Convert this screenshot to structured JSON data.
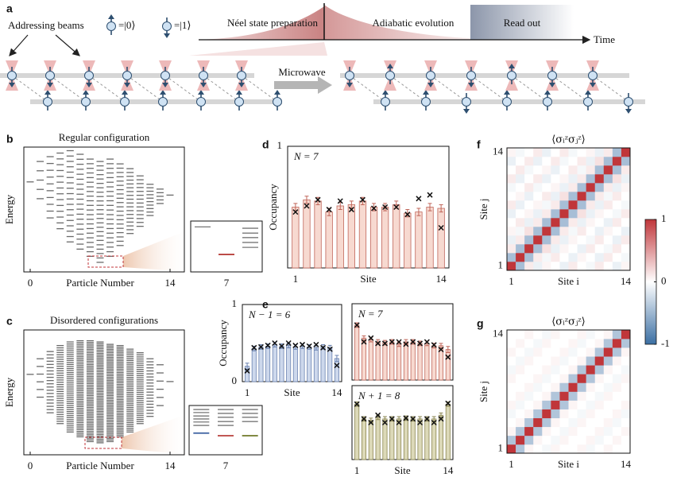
{
  "panel_labels": [
    "a",
    "b",
    "c",
    "d",
    "e",
    "f",
    "g"
  ],
  "schematic": {
    "addressing_beams": "Addressing beams",
    "ket0": "=|0⟩",
    "ket1": "=|1⟩",
    "stage1": "Néel state preparation",
    "stage2": "Adiabatic evolution",
    "stage3": "Read out",
    "time_axis": "Time",
    "microwave": "Microwave"
  },
  "colorbar": {
    "clim": [
      -1,
      1
    ],
    "ticks": [
      1,
      0,
      -1
    ],
    "colors": [
      "#3b6fa3",
      "#ffffff",
      "#c0363a"
    ]
  },
  "chart_data": [
    {
      "type": "spectrum",
      "title": "Regular configuration",
      "xlabel": "Particle Number",
      "ylabel": "Energy",
      "x": [
        0,
        1,
        2,
        3,
        4,
        5,
        6,
        7,
        8,
        9,
        10,
        11,
        12,
        13,
        14
      ],
      "xlim": [
        0,
        14
      ],
      "xticks": [
        0,
        14
      ],
      "ylim": [
        0,
        10
      ],
      "energy_min": [
        7.3,
        5.9,
        4.3,
        3.4,
        2.3,
        1.7,
        1.1,
        0.6,
        1.1,
        2.0,
        3.0,
        3.6,
        4.5,
        5.5,
        6.2
      ],
      "energy_max": [
        7.3,
        9.0,
        9.4,
        9.7,
        9.9,
        9.6,
        9.2,
        9.0,
        9.2,
        8.8,
        8.4,
        7.8,
        7.1,
        6.7,
        6.2
      ],
      "level_counts": [
        1,
        5,
        10,
        14,
        18,
        20,
        22,
        24,
        22,
        20,
        18,
        14,
        10,
        5,
        1
      ],
      "color": "#6a6a6a",
      "inset": {
        "x": [
          6,
          7,
          8
        ],
        "xlim": [
          5.5,
          8.5
        ],
        "xticks": [
          7
        ],
        "ylim": [
          0,
          10
        ],
        "levels": [
          [
            9.4
          ],
          [],
          [
            9.1,
            8.0,
            7.0,
            5.9,
            4.8
          ]
        ],
        "highlight": [
          null,
          3.2,
          null
        ],
        "highlight_colors": [
          null,
          "#b8413c",
          null
        ],
        "color": "#777777"
      }
    },
    {
      "type": "spectrum",
      "title": "Disordered configurations",
      "xlabel": "Particle Number",
      "ylabel": "Energy",
      "x": [
        0,
        1,
        2,
        3,
        4,
        5,
        6,
        7,
        8,
        9,
        10,
        11,
        12,
        13,
        14
      ],
      "xlim": [
        0,
        14
      ],
      "xticks": [
        0,
        14
      ],
      "ylim": [
        0,
        10
      ],
      "energy_min": [
        6.5,
        4.6,
        3.3,
        2.4,
        1.7,
        1.3,
        0.9,
        0.8,
        0.9,
        1.3,
        1.7,
        2.4,
        3.0,
        3.9,
        5.9
      ],
      "energy_max": [
        6.5,
        7.8,
        8.4,
        8.9,
        9.2,
        9.3,
        9.3,
        9.2,
        9.0,
        8.9,
        8.6,
        8.3,
        7.8,
        7.3,
        5.9
      ],
      "level_counts": [
        1,
        6,
        20,
        35,
        45,
        55,
        60,
        62,
        60,
        55,
        45,
        35,
        20,
        6,
        1
      ],
      "color": "#6a6a6a",
      "inset": {
        "x": [
          6,
          7,
          8
        ],
        "xlim": [
          5.5,
          8.5
        ],
        "xticks": [
          7
        ],
        "ylim": [
          0,
          10
        ],
        "levels": [
          [
            9.8,
            9.1,
            8.3,
            7.6,
            6.9,
            6.1
          ],
          [
            9.8,
            8.9,
            8.0,
            7.0,
            6.1
          ],
          [
            9.8,
            8.9,
            8.0,
            7.0
          ]
        ],
        "highlight": [
          4.3,
          3.7,
          3.7
        ],
        "highlight_colors": [
          "#3a5fa0",
          "#b8413c",
          "#6f7a2a"
        ],
        "color": "#777777"
      }
    },
    {
      "type": "bar",
      "annotation": "N = 7",
      "xlabel": "Site",
      "ylabel": "Occupancy",
      "x": [
        1,
        2,
        3,
        4,
        5,
        6,
        7,
        8,
        9,
        10,
        11,
        12,
        13,
        14
      ],
      "xlim": [
        0.3,
        14.7
      ],
      "xticks": [
        1,
        14
      ],
      "ylim": [
        0,
        1
      ],
      "yticks": [
        1
      ],
      "values": [
        0.5,
        0.56,
        0.55,
        0.46,
        0.51,
        0.52,
        0.55,
        0.5,
        0.5,
        0.52,
        0.45,
        0.46,
        0.5,
        0.49
      ],
      "errors": [
        0.03,
        0.03,
        0.03,
        0.03,
        0.03,
        0.03,
        0.03,
        0.03,
        0.03,
        0.03,
        0.03,
        0.03,
        0.03,
        0.03
      ],
      "theory": [
        0.46,
        0.51,
        0.56,
        0.48,
        0.55,
        0.48,
        0.56,
        0.49,
        0.5,
        0.5,
        0.44,
        0.57,
        0.6,
        0.33
      ],
      "color": "#f7d9d0",
      "edge_color": "#c0665a"
    },
    {
      "type": "bar",
      "annotation": "N − 1 = 6",
      "xlabel": "Site",
      "ylabel": "Occupancy",
      "x": [
        1,
        2,
        3,
        4,
        5,
        6,
        7,
        8,
        9,
        10,
        11,
        12,
        13,
        14
      ],
      "xlim": [
        0.3,
        14.7
      ],
      "xticks": [
        1,
        14
      ],
      "ylim": [
        0,
        1
      ],
      "yticks": [
        0,
        1
      ],
      "values": [
        0.2,
        0.43,
        0.45,
        0.46,
        0.48,
        0.46,
        0.47,
        0.45,
        0.46,
        0.45,
        0.44,
        0.45,
        0.44,
        0.3
      ],
      "errors": [
        0.04,
        0.03,
        0.03,
        0.03,
        0.03,
        0.03,
        0.03,
        0.03,
        0.03,
        0.03,
        0.03,
        0.03,
        0.03,
        0.04
      ],
      "theory": [
        0.14,
        0.44,
        0.45,
        0.47,
        0.5,
        0.46,
        0.5,
        0.47,
        0.48,
        0.46,
        0.48,
        0.44,
        0.42,
        0.21
      ],
      "color": "#cdd8ec",
      "edge_color": "#6a82b0"
    },
    {
      "type": "bar",
      "annotation": "N = 7",
      "x": [
        1,
        2,
        3,
        4,
        5,
        6,
        7,
        8,
        9,
        10,
        11,
        12,
        13,
        14
      ],
      "xlim": [
        0.3,
        14.7
      ],
      "ylim": [
        0,
        1
      ],
      "values": [
        0.72,
        0.55,
        0.53,
        0.5,
        0.49,
        0.5,
        0.47,
        0.5,
        0.5,
        0.48,
        0.48,
        0.45,
        0.45,
        0.4
      ],
      "errors": [
        0.03,
        0.03,
        0.03,
        0.03,
        0.03,
        0.03,
        0.03,
        0.03,
        0.03,
        0.03,
        0.03,
        0.03,
        0.03,
        0.04
      ],
      "theory": [
        0.72,
        0.5,
        0.55,
        0.48,
        0.48,
        0.5,
        0.5,
        0.47,
        0.5,
        0.48,
        0.5,
        0.46,
        0.4,
        0.3
      ],
      "color": "#f7d9d0",
      "edge_color": "#c0665a"
    },
    {
      "type": "bar",
      "annotation": "N + 1 = 8",
      "xlabel": "Site",
      "x": [
        1,
        2,
        3,
        4,
        5,
        6,
        7,
        8,
        9,
        10,
        11,
        12,
        13,
        14
      ],
      "xlim": [
        0.3,
        14.7
      ],
      "xticks": [
        1,
        14
      ],
      "ylim": [
        0,
        1
      ],
      "values": [
        0.75,
        0.55,
        0.53,
        0.57,
        0.55,
        0.55,
        0.55,
        0.56,
        0.55,
        0.55,
        0.55,
        0.55,
        0.6,
        0.75
      ],
      "errors": [
        0.03,
        0.03,
        0.03,
        0.03,
        0.03,
        0.03,
        0.03,
        0.03,
        0.03,
        0.03,
        0.03,
        0.03,
        0.03,
        0.03
      ],
      "theory": [
        0.75,
        0.55,
        0.5,
        0.6,
        0.5,
        0.55,
        0.5,
        0.56,
        0.55,
        0.5,
        0.55,
        0.5,
        0.55,
        0.76
      ],
      "color": "#dcd9b8",
      "edge_color": "#8a8550"
    },
    {
      "type": "heatmap",
      "title": "⟨σᵢᶻσⱼᶻ⟩",
      "xlabel": "Site i",
      "ylabel": "Site j",
      "xlim": [
        0.5,
        14.5
      ],
      "ylim": [
        0.5,
        14.5
      ],
      "xticks": [
        1,
        14
      ],
      "yticks": [
        1,
        14
      ],
      "values": [
        [
          1,
          -0.45,
          0.1,
          -0.1,
          0.05,
          0,
          -0.1,
          0.1,
          0,
          -0.05,
          0.1,
          0,
          -0.1,
          0.05
        ],
        [
          -0.45,
          1,
          -0.45,
          0.1,
          -0.05,
          0.1,
          0,
          -0.1,
          0.05,
          0,
          -0.1,
          0.1,
          0,
          -0.05
        ],
        [
          0.1,
          -0.45,
          1,
          -0.45,
          0.15,
          -0.1,
          0.05,
          0,
          -0.1,
          0.1,
          0,
          -0.05,
          0.1,
          0
        ],
        [
          -0.1,
          0.1,
          -0.45,
          1,
          -0.45,
          0.1,
          -0.1,
          0.05,
          0,
          -0.05,
          0.1,
          0,
          -0.1,
          0.1
        ],
        [
          0.05,
          -0.05,
          0.15,
          -0.45,
          1,
          -0.45,
          0.1,
          -0.05,
          0.1,
          0,
          -0.1,
          0.05,
          0,
          -0.1
        ],
        [
          0,
          0.1,
          -0.1,
          0.1,
          -0.45,
          1,
          -0.45,
          0.1,
          -0.1,
          0.05,
          0,
          -0.1,
          0.1,
          0
        ],
        [
          -0.1,
          0,
          0.05,
          -0.1,
          0.1,
          -0.45,
          1,
          -0.45,
          0.15,
          -0.1,
          0.05,
          0,
          -0.05,
          0.1
        ],
        [
          0.1,
          -0.1,
          0,
          0.05,
          -0.05,
          0.1,
          -0.45,
          1,
          -0.45,
          0.1,
          -0.1,
          0.1,
          0,
          -0.05
        ],
        [
          0,
          0.05,
          -0.1,
          0,
          0.1,
          -0.1,
          0.15,
          -0.45,
          1,
          -0.45,
          0.1,
          -0.05,
          0.1,
          0
        ],
        [
          -0.05,
          0,
          0.1,
          -0.05,
          0,
          0.05,
          -0.1,
          0.1,
          -0.45,
          1,
          -0.45,
          0.1,
          -0.1,
          0.05
        ],
        [
          0.1,
          -0.1,
          0,
          0.1,
          -0.1,
          0,
          0.05,
          -0.1,
          0.1,
          -0.45,
          1,
          -0.45,
          0.15,
          -0.1
        ],
        [
          0,
          0.1,
          -0.05,
          0,
          0.05,
          -0.1,
          0,
          0.1,
          -0.05,
          0.1,
          -0.45,
          1,
          -0.45,
          0.1
        ],
        [
          -0.1,
          0,
          0.1,
          -0.1,
          0,
          0.1,
          -0.05,
          0,
          0.1,
          -0.1,
          0.15,
          -0.45,
          1,
          -0.45
        ],
        [
          0.05,
          -0.05,
          0,
          0.1,
          -0.1,
          0,
          0.1,
          -0.05,
          0,
          0.05,
          -0.1,
          0.1,
          -0.45,
          1
        ]
      ]
    },
    {
      "type": "heatmap",
      "title": "⟨σᵢᶻσⱼᶻ⟩",
      "xlabel": "Site i",
      "ylabel": "Site j",
      "xlim": [
        0.5,
        14.5
      ],
      "ylim": [
        0.5,
        14.5
      ],
      "xticks": [
        1,
        14
      ],
      "yticks": [
        1,
        14
      ],
      "values": [
        [
          1,
          -0.4,
          0.05,
          0,
          -0.05,
          0.05,
          0,
          0,
          0.05,
          -0.05,
          0,
          0.05,
          0,
          0
        ],
        [
          -0.4,
          1,
          -0.4,
          0.05,
          0,
          -0.05,
          0.05,
          0,
          0,
          0.05,
          -0.05,
          0,
          0.05,
          0
        ],
        [
          0.05,
          -0.4,
          1,
          -0.4,
          0.05,
          0,
          -0.05,
          0.05,
          0,
          0,
          0.05,
          -0.05,
          0,
          0.05
        ],
        [
          0,
          0.05,
          -0.4,
          1,
          -0.4,
          0.05,
          0,
          -0.05,
          0.05,
          0,
          0,
          0.05,
          -0.05,
          0
        ],
        [
          -0.05,
          0,
          0.05,
          -0.4,
          1,
          -0.4,
          0.05,
          0,
          -0.05,
          0.05,
          0,
          0,
          0.05,
          -0.05
        ],
        [
          0.05,
          -0.05,
          0,
          0.05,
          -0.4,
          1,
          -0.4,
          0.05,
          0,
          -0.05,
          0.05,
          0,
          0,
          0.05
        ],
        [
          0,
          0.05,
          -0.05,
          0,
          0.05,
          -0.4,
          1,
          -0.4,
          0.05,
          0,
          -0.05,
          0.05,
          0,
          0
        ],
        [
          0,
          0,
          0.05,
          -0.05,
          0,
          0.05,
          -0.4,
          1,
          -0.4,
          0.05,
          0,
          -0.05,
          0.05,
          0
        ],
        [
          0.05,
          0,
          0,
          0.05,
          -0.05,
          0,
          0.05,
          -0.4,
          1,
          -0.4,
          0.05,
          0,
          -0.05,
          0.05
        ],
        [
          -0.05,
          0.05,
          0,
          0,
          0.05,
          -0.05,
          0,
          0.05,
          -0.4,
          1,
          -0.4,
          0.05,
          0,
          -0.05
        ],
        [
          0,
          -0.05,
          0.05,
          0,
          0,
          0.05,
          -0.05,
          0,
          0.05,
          -0.4,
          1,
          -0.4,
          0.05,
          0
        ],
        [
          0.05,
          0,
          -0.05,
          0.05,
          0,
          0,
          0.05,
          -0.05,
          0,
          0.05,
          -0.4,
          1,
          -0.4,
          0.05
        ],
        [
          0,
          0.05,
          0,
          -0.05,
          0.05,
          0,
          0,
          0.05,
          -0.05,
          0,
          0.05,
          -0.4,
          1,
          -0.4
        ],
        [
          0,
          0,
          0.05,
          0,
          -0.05,
          0.05,
          0,
          0,
          0.05,
          -0.05,
          0,
          0.05,
          -0.4,
          1
        ]
      ]
    }
  ]
}
